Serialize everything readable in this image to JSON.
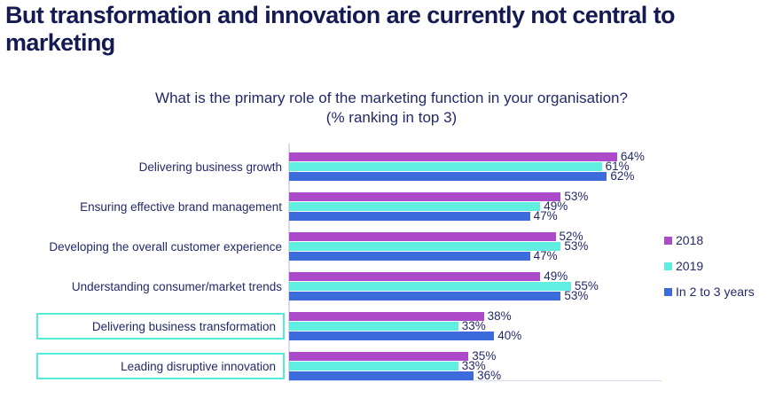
{
  "page": {
    "heading": "But transformation and innovation are currently not central to marketing"
  },
  "chart_data": {
    "type": "bar",
    "orientation": "horizontal",
    "title": "What is the primary role of the marketing function in your organisation?",
    "subtitle": "(% ranking in top 3)",
    "categories": [
      "Delivering business growth",
      "Ensuring effective brand management",
      "Developing the overall customer experience",
      "Understanding consumer/market trends",
      "Delivering business transformation",
      "Leading disruptive innovation"
    ],
    "series": [
      {
        "name": "2018",
        "color": "#AC4BC9",
        "values": [
          64,
          53,
          52,
          49,
          38,
          35
        ]
      },
      {
        "name": "2019",
        "color": "#5FEEDF",
        "values": [
          61,
          49,
          53,
          55,
          33,
          33
        ]
      },
      {
        "name": "In 2 to 3 years",
        "color": "#3C6CDC",
        "values": [
          62,
          47,
          47,
          53,
          40,
          36
        ]
      }
    ],
    "value_suffix": "%",
    "highlighted_categories": [
      "Delivering business transformation",
      "Leading disruptive innovation"
    ],
    "legend_position": "right",
    "axis": {
      "xlim": [
        0,
        100
      ],
      "gridlines": false
    }
  },
  "style": {
    "heading_color": "#141A52",
    "text_color": "#232968",
    "highlight_border": "#55EBDA",
    "axis_line_color": "#D9DAF2",
    "background": "#FFFFFF"
  }
}
